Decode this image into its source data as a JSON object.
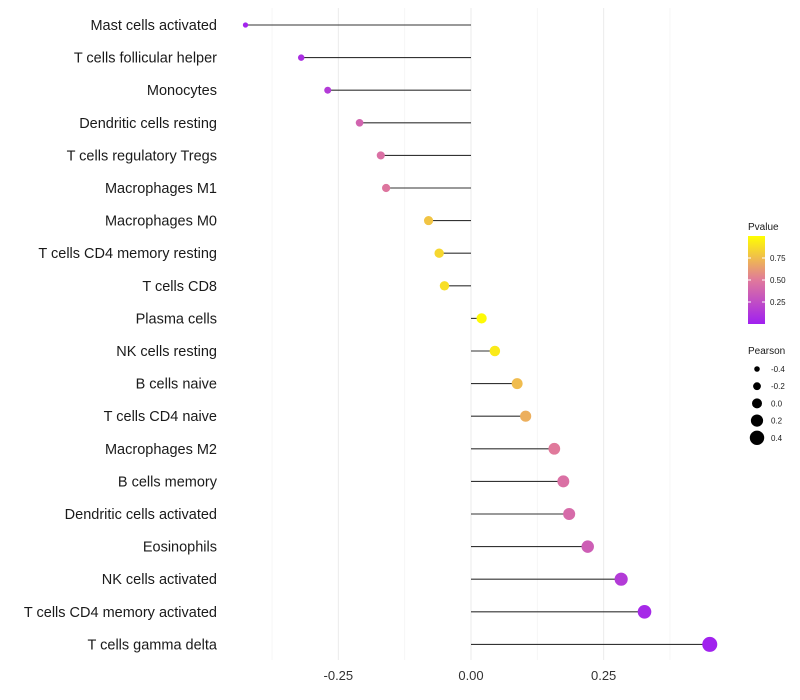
{
  "chart_data": {
    "type": "lollipop",
    "categories": [
      "Mast cells activated",
      "T cells follicular helper",
      "Monocytes",
      "Dendritic cells resting",
      "T cells regulatory  Tregs ",
      "Macrophages M1",
      "Macrophages M0",
      "T cells CD4 memory resting",
      "T cells CD8",
      "Plasma cells",
      "NK cells resting",
      "B cells naive",
      "T cells CD4 naive",
      "Macrophages M2",
      "B cells memory",
      "Dendritic cells activated",
      "Eosinophils",
      "NK cells activated",
      "T cells CD4 memory activated",
      "T cells gamma delta"
    ],
    "values": [
      -0.425,
      -0.32,
      -0.27,
      -0.21,
      -0.17,
      -0.16,
      -0.08,
      -0.06,
      -0.05,
      0.02,
      0.045,
      0.087,
      0.103,
      0.157,
      0.174,
      0.185,
      0.22,
      0.283,
      0.327,
      0.45
    ],
    "pvalues": [
      0.02,
      0.08,
      0.15,
      0.38,
      0.45,
      0.48,
      0.78,
      0.85,
      0.88,
      0.98,
      0.92,
      0.75,
      0.7,
      0.5,
      0.45,
      0.42,
      0.35,
      0.15,
      0.05,
      0.01
    ],
    "x_ticks": [
      -0.25,
      0.0,
      0.25
    ],
    "x_tick_labels": [
      "-0.25",
      "0.00",
      "0.25"
    ],
    "xlim": [
      -0.48,
      0.5
    ],
    "xlabel": "",
    "ylabel": "",
    "color_low": "#a020f0",
    "color_mid": "#e0799b",
    "color_high": "#ffff00",
    "legend_color": {
      "title": "Pvalue",
      "ticks": [
        0.25,
        0.5,
        0.75
      ],
      "tick_labels": [
        "0.25",
        "0.50",
        "0.75"
      ],
      "range": [
        0.0,
        1.0
      ]
    },
    "legend_size": {
      "title": "Pearson",
      "values": [
        -0.4,
        -0.2,
        0.0,
        0.2,
        0.4
      ],
      "labels": [
        "-0.4",
        "-0.2",
        "0.0",
        "0.2",
        "0.4"
      ]
    }
  }
}
